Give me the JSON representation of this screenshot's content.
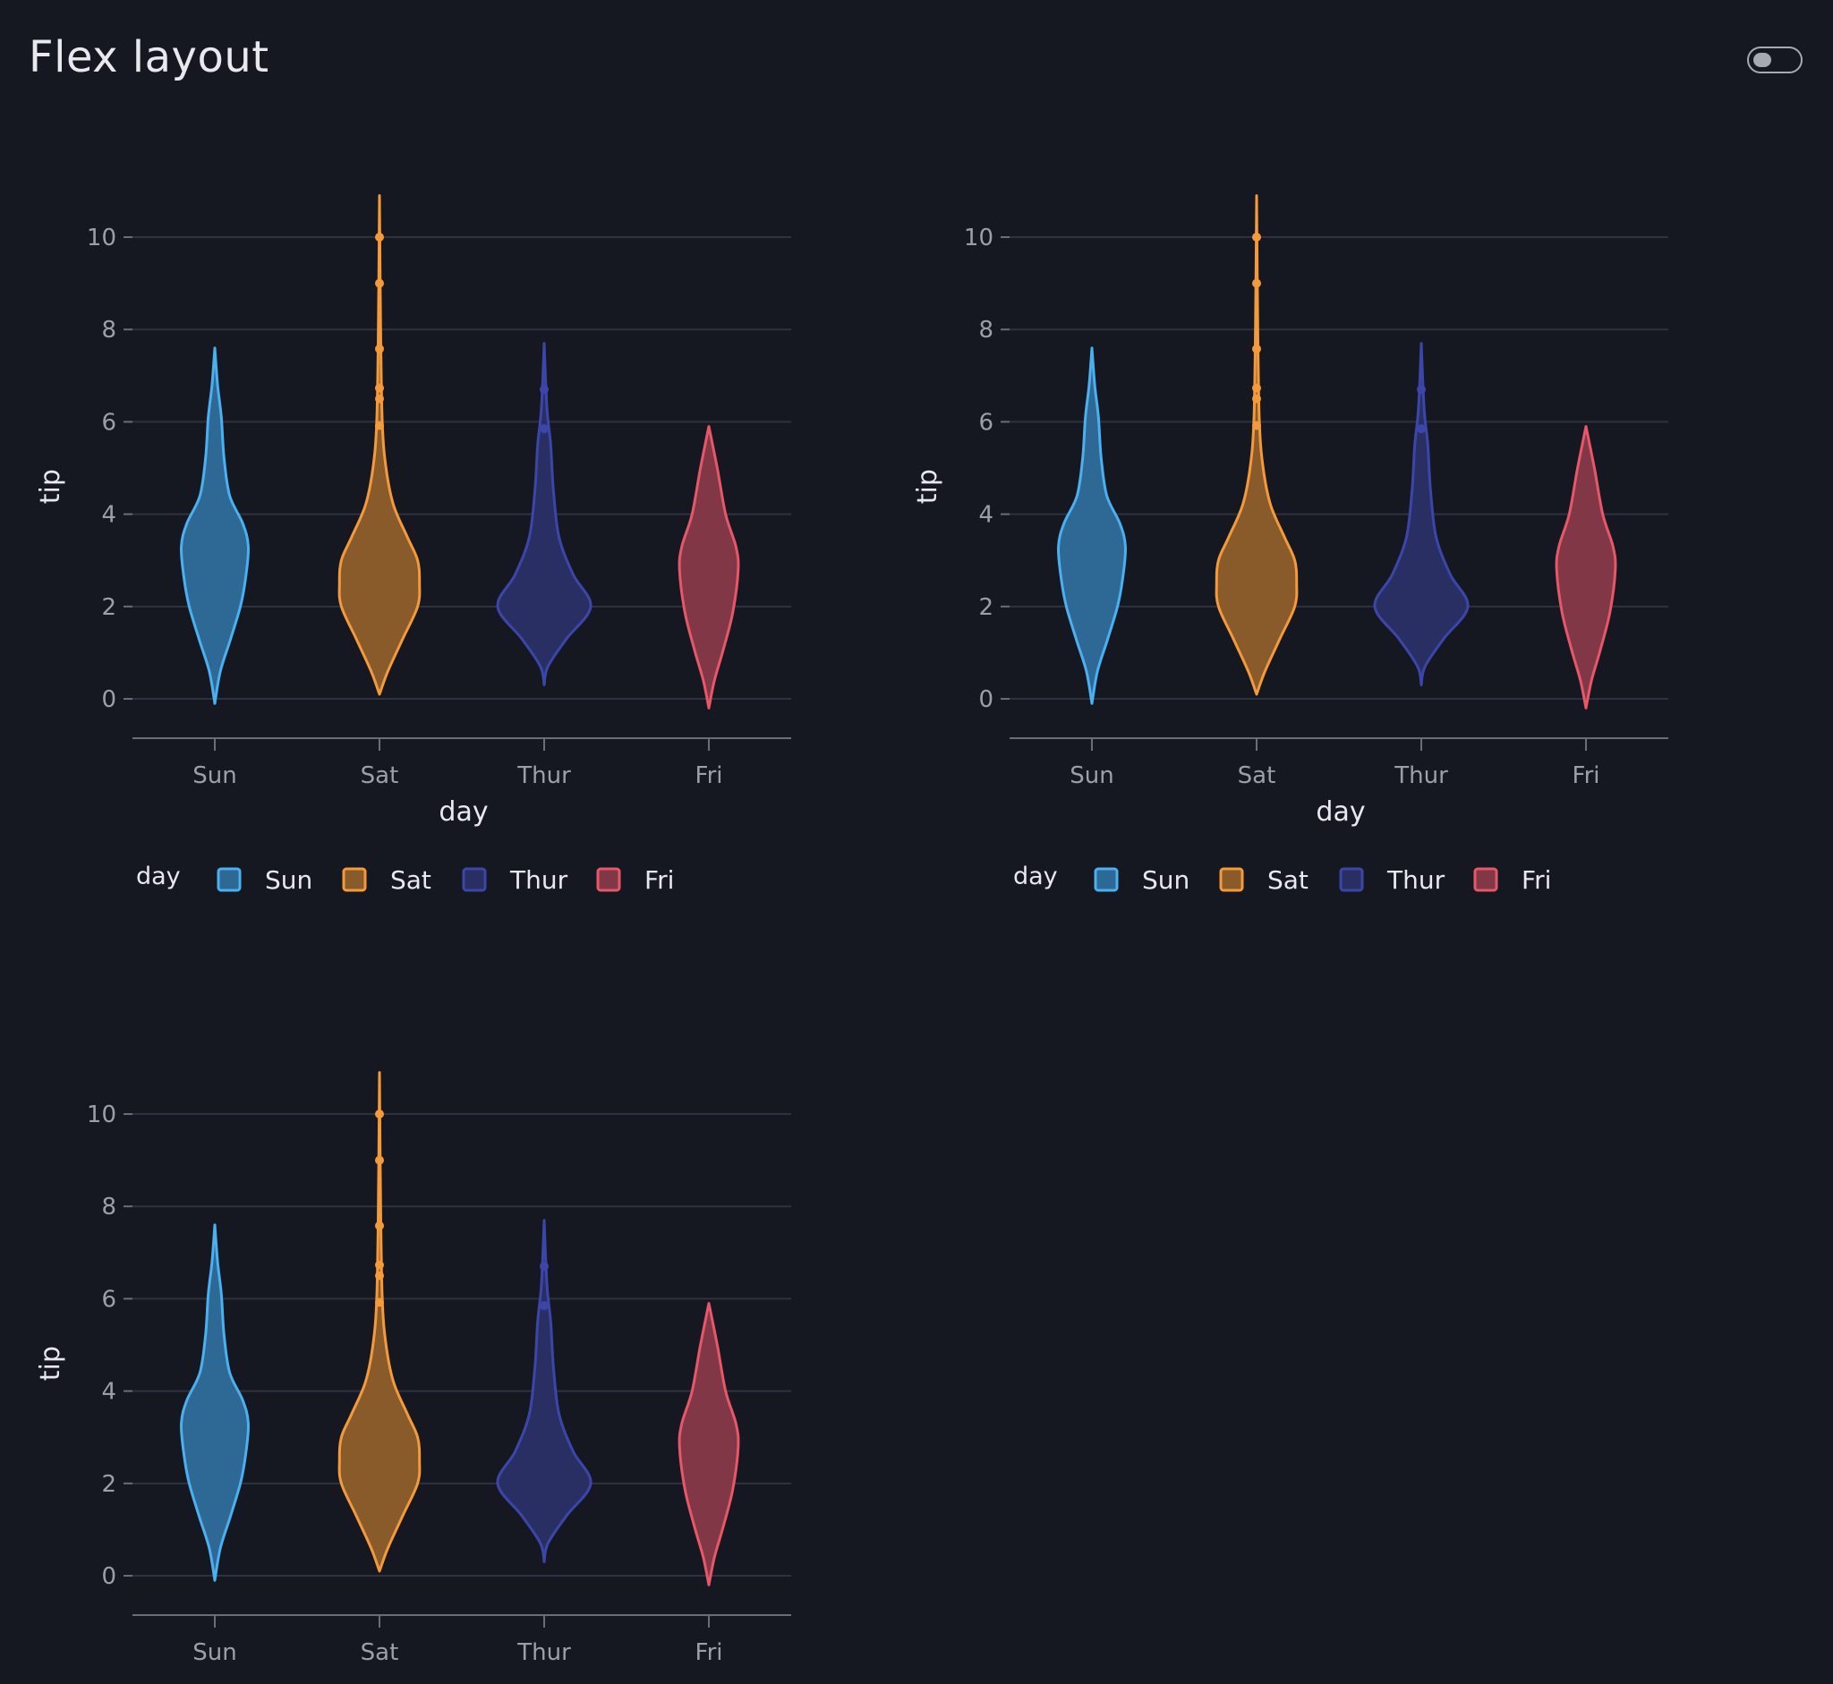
{
  "page": {
    "title": "Flex layout"
  },
  "theme_toggle": {
    "state": "off"
  },
  "colors": {
    "background": "#151821",
    "grid": "#2e3240",
    "axis": "#6a6e79",
    "tick_text": "#9c9fa9",
    "text": "#e8e9ee"
  },
  "chart_data": [
    {
      "type": "violin",
      "title": "",
      "xlabel": "day",
      "ylabel": "tip",
      "ylim": [
        -0.8,
        11.2
      ],
      "yticks": [
        0,
        2,
        4,
        6,
        8,
        10
      ],
      "ytick_labels": [
        "0",
        "2",
        "4",
        "6",
        "8",
        "10"
      ],
      "grid": "horizontal",
      "legend": {
        "title": "day",
        "position": "bottom-left"
      },
      "categories": [
        "Sun",
        "Sat",
        "Thur",
        "Fri"
      ],
      "series": [
        {
          "name": "Sun",
          "color": "#4ab0f0",
          "fill": "#2e6996",
          "min": -0.1,
          "max": 7.6,
          "mode": 3.3,
          "outliers": []
        },
        {
          "name": "Sat",
          "color": "#f59a3a",
          "fill": "#8a5b2a",
          "min": 0.1,
          "max": 10.9,
          "mode": 2.5,
          "outliers": [
            10,
            9,
            7.58,
            6.73,
            6.5,
            5.92
          ]
        },
        {
          "name": "Thur",
          "color": "#3c46a8",
          "fill": "#2a2f63",
          "min": 0.3,
          "max": 7.7,
          "mode": 2.0,
          "outliers": [
            6.7,
            5.85
          ]
        },
        {
          "name": "Fri",
          "color": "#e65869",
          "fill": "#823747",
          "min": -0.2,
          "max": 5.9,
          "mode": 2.8,
          "outliers": []
        }
      ]
    },
    {
      "type": "violin",
      "title": "",
      "xlabel": "day",
      "ylabel": "tip",
      "ylim": [
        -0.8,
        11.2
      ],
      "yticks": [
        0,
        2,
        4,
        6,
        8,
        10
      ],
      "ytick_labels": [
        "0",
        "2",
        "4",
        "6",
        "8",
        "10"
      ],
      "grid": "horizontal",
      "legend": {
        "title": "day",
        "position": "bottom-left"
      },
      "categories": [
        "Sun",
        "Sat",
        "Thur",
        "Fri"
      ],
      "series": [
        {
          "name": "Sun",
          "color": "#4ab0f0",
          "fill": "#2e6996",
          "min": -0.1,
          "max": 7.6,
          "mode": 3.3,
          "outliers": []
        },
        {
          "name": "Sat",
          "color": "#f59a3a",
          "fill": "#8a5b2a",
          "min": 0.1,
          "max": 10.9,
          "mode": 2.5,
          "outliers": [
            10,
            9,
            7.58,
            6.73,
            6.5,
            5.92
          ]
        },
        {
          "name": "Thur",
          "color": "#3c46a8",
          "fill": "#2a2f63",
          "min": 0.3,
          "max": 7.7,
          "mode": 2.0,
          "outliers": [
            6.7,
            5.85
          ]
        },
        {
          "name": "Fri",
          "color": "#e65869",
          "fill": "#823747",
          "min": -0.2,
          "max": 5.9,
          "mode": 2.8,
          "outliers": []
        }
      ]
    },
    {
      "type": "violin",
      "title": "",
      "xlabel": "",
      "ylabel": "tip",
      "ylim": [
        -0.8,
        11.2
      ],
      "yticks": [
        0,
        2,
        4,
        6,
        8,
        10
      ],
      "ytick_labels": [
        "0",
        "2",
        "4",
        "6",
        "8",
        "10"
      ],
      "grid": "horizontal",
      "legend": null,
      "categories": [
        "Sun",
        "Sat",
        "Thur",
        "Fri"
      ],
      "series": [
        {
          "name": "Sun",
          "color": "#4ab0f0",
          "fill": "#2e6996",
          "min": -0.1,
          "max": 7.6,
          "mode": 3.3,
          "outliers": []
        },
        {
          "name": "Sat",
          "color": "#f59a3a",
          "fill": "#8a5b2a",
          "min": 0.1,
          "max": 10.9,
          "mode": 2.5,
          "outliers": [
            10,
            9,
            7.58,
            6.73,
            6.5,
            5.92
          ]
        },
        {
          "name": "Thur",
          "color": "#3c46a8",
          "fill": "#2a2f63",
          "min": 0.3,
          "max": 7.7,
          "mode": 2.0,
          "outliers": [
            6.7,
            5.85
          ]
        },
        {
          "name": "Fri",
          "color": "#e65869",
          "fill": "#823747",
          "min": -0.2,
          "max": 5.9,
          "mode": 2.8,
          "outliers": []
        }
      ]
    }
  ]
}
